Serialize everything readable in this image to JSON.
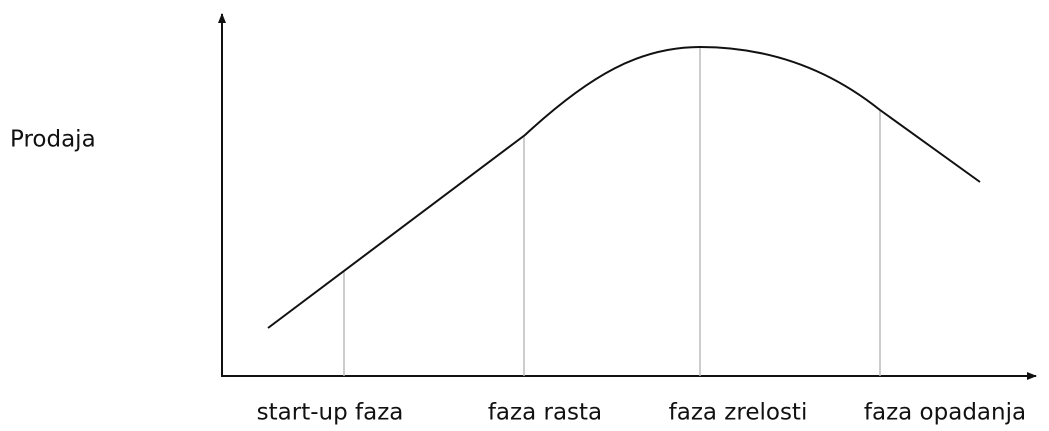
{
  "y_axis_label": "Prodaja",
  "phases": [
    "start-up faza",
    "faza rasta",
    "faza zrelosti",
    "faza opadanja"
  ]
}
